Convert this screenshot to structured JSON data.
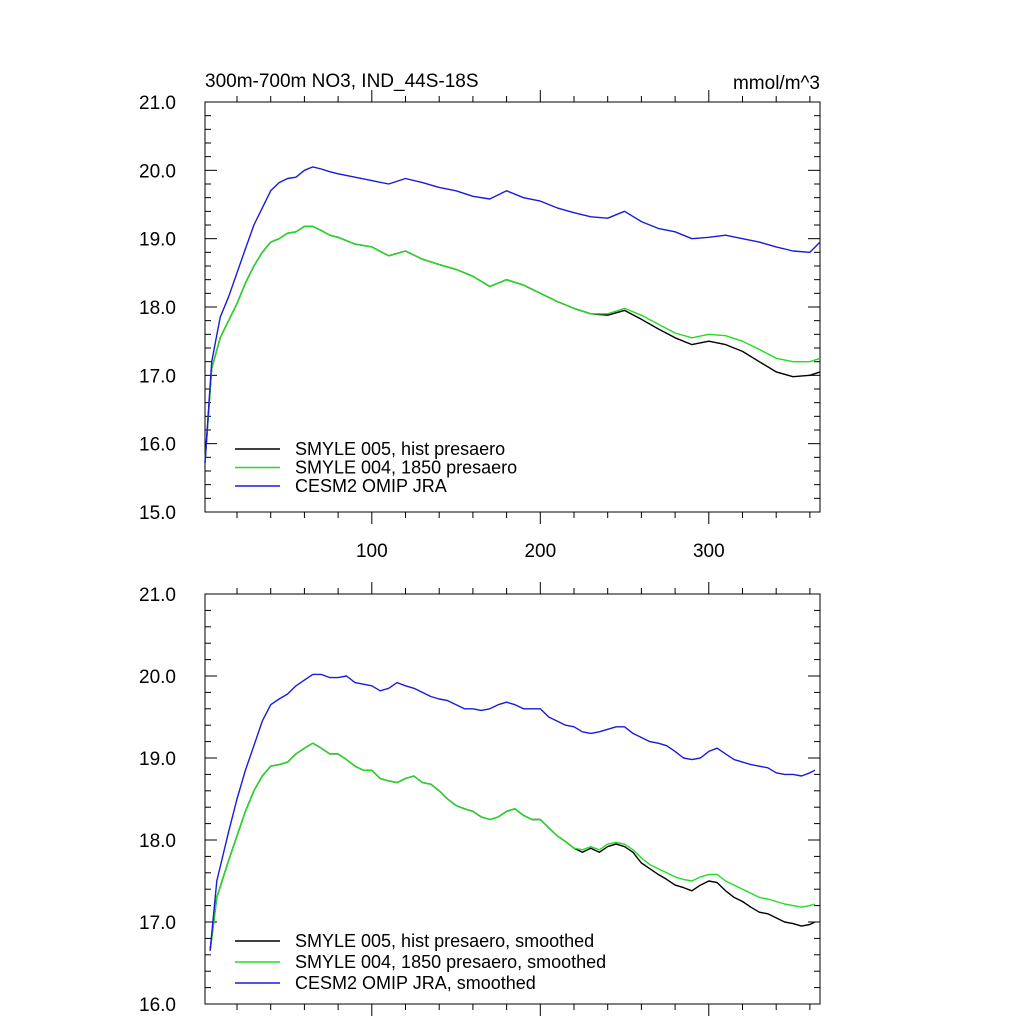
{
  "chart_data": [
    {
      "type": "line",
      "title": "300m-700m NO3, IND_44S-18S",
      "units_label": "mmol/m^3",
      "xlim": [
        1,
        366
      ],
      "ylim": [
        15.0,
        21.0
      ],
      "x_ticks": [
        100,
        200,
        300
      ],
      "x_tick_labels": [
        "100",
        "200",
        "300"
      ],
      "y_ticks": [
        15.0,
        16.0,
        17.0,
        18.0,
        19.0,
        20.0,
        21.0
      ],
      "y_tick_labels": [
        "15.0",
        "16.0",
        "17.0",
        "18.0",
        "19.0",
        "20.0",
        "21.0"
      ],
      "legend_position": "bottom-left",
      "series": [
        {
          "name": "SMYLE 005, hist presaero",
          "color": "#000000",
          "x": [
            1,
            5,
            10,
            15,
            20,
            25,
            30,
            35,
            40,
            45,
            50,
            55,
            60,
            65,
            70,
            75,
            80,
            90,
            100,
            110,
            120,
            130,
            140,
            150,
            160,
            170,
            180,
            190,
            200,
            210,
            220,
            230,
            240,
            250,
            260,
            270,
            280,
            290,
            300,
            310,
            320,
            330,
            340,
            350,
            360,
            366
          ],
          "values": [
            15.72,
            17.1,
            17.55,
            17.8,
            18.05,
            18.35,
            18.6,
            18.8,
            18.95,
            19.0,
            19.08,
            19.1,
            19.18,
            19.18,
            19.12,
            19.05,
            19.02,
            18.92,
            18.88,
            18.75,
            18.82,
            18.7,
            18.62,
            18.55,
            18.45,
            18.3,
            18.4,
            18.32,
            18.2,
            18.08,
            17.98,
            17.9,
            17.88,
            17.95,
            17.82,
            17.68,
            17.55,
            17.45,
            17.5,
            17.45,
            17.35,
            17.2,
            17.05,
            16.98,
            17.0,
            17.05
          ]
        },
        {
          "name": "SMYLE 004, 1850 presaero",
          "color": "#22dd22",
          "x": [
            1,
            5,
            10,
            15,
            20,
            25,
            30,
            35,
            40,
            45,
            50,
            55,
            60,
            65,
            70,
            75,
            80,
            90,
            100,
            110,
            120,
            130,
            140,
            150,
            160,
            170,
            180,
            190,
            200,
            210,
            220,
            230,
            240,
            250,
            260,
            270,
            280,
            290,
            300,
            310,
            320,
            330,
            340,
            350,
            360,
            366
          ],
          "values": [
            15.72,
            17.1,
            17.55,
            17.8,
            18.05,
            18.35,
            18.6,
            18.8,
            18.95,
            19.0,
            19.08,
            19.1,
            19.18,
            19.18,
            19.12,
            19.05,
            19.02,
            18.92,
            18.88,
            18.75,
            18.82,
            18.7,
            18.62,
            18.55,
            18.45,
            18.3,
            18.4,
            18.32,
            18.2,
            18.08,
            17.98,
            17.9,
            17.9,
            17.98,
            17.88,
            17.75,
            17.62,
            17.55,
            17.6,
            17.58,
            17.5,
            17.38,
            17.25,
            17.2,
            17.2,
            17.25
          ]
        },
        {
          "name": "CESM2 OMIP JRA",
          "color": "#1a1adc",
          "x": [
            1,
            5,
            10,
            15,
            20,
            25,
            30,
            35,
            40,
            45,
            50,
            55,
            60,
            65,
            70,
            75,
            80,
            90,
            100,
            110,
            120,
            130,
            140,
            150,
            160,
            170,
            180,
            190,
            200,
            210,
            220,
            230,
            240,
            250,
            260,
            270,
            280,
            290,
            300,
            310,
            320,
            330,
            340,
            350,
            360,
            366
          ],
          "values": [
            15.72,
            17.2,
            17.85,
            18.15,
            18.5,
            18.85,
            19.2,
            19.45,
            19.7,
            19.82,
            19.88,
            19.9,
            20.0,
            20.05,
            20.02,
            19.98,
            19.95,
            19.9,
            19.85,
            19.8,
            19.88,
            19.82,
            19.75,
            19.7,
            19.62,
            19.58,
            19.7,
            19.6,
            19.55,
            19.45,
            19.38,
            19.32,
            19.3,
            19.4,
            19.25,
            19.15,
            19.1,
            19.0,
            19.02,
            19.05,
            19.0,
            18.95,
            18.88,
            18.82,
            18.8,
            18.95
          ]
        }
      ]
    },
    {
      "type": "line",
      "xlim": [
        1,
        366
      ],
      "ylim": [
        16.0,
        21.0
      ],
      "x_ticks": [
        100,
        200,
        300
      ],
      "y_ticks": [
        16.0,
        17.0,
        18.0,
        19.0,
        20.0,
        21.0
      ],
      "y_tick_labels": [
        "16.0",
        "17.0",
        "18.0",
        "19.0",
        "20.0",
        "21.0"
      ],
      "legend_position": "bottom-left",
      "series": [
        {
          "name": "SMYLE 005, hist presaero, smoothed",
          "color": "#000000",
          "x": [
            4,
            8,
            15,
            20,
            25,
            30,
            35,
            40,
            45,
            50,
            55,
            60,
            65,
            70,
            75,
            80,
            85,
            90,
            95,
            100,
            105,
            110,
            115,
            120,
            125,
            130,
            135,
            140,
            145,
            150,
            155,
            160,
            165,
            170,
            175,
            180,
            185,
            190,
            195,
            200,
            205,
            210,
            215,
            220,
            225,
            230,
            235,
            240,
            245,
            250,
            255,
            260,
            265,
            270,
            275,
            280,
            285,
            290,
            295,
            300,
            305,
            310,
            315,
            320,
            325,
            330,
            335,
            340,
            345,
            350,
            355,
            360,
            363
          ],
          "values": [
            16.65,
            17.3,
            17.75,
            18.05,
            18.35,
            18.6,
            18.78,
            18.9,
            18.92,
            18.95,
            19.05,
            19.12,
            19.18,
            19.12,
            19.05,
            19.05,
            18.98,
            18.9,
            18.85,
            18.85,
            18.75,
            18.72,
            18.7,
            18.75,
            18.78,
            18.7,
            18.68,
            18.6,
            18.5,
            18.42,
            18.38,
            18.35,
            18.28,
            18.25,
            18.28,
            18.35,
            18.38,
            18.3,
            18.25,
            18.25,
            18.15,
            18.05,
            17.98,
            17.9,
            17.85,
            17.9,
            17.85,
            17.92,
            17.95,
            17.92,
            17.85,
            17.72,
            17.65,
            17.58,
            17.52,
            17.45,
            17.42,
            17.38,
            17.45,
            17.5,
            17.48,
            17.38,
            17.3,
            17.25,
            17.18,
            17.12,
            17.1,
            17.05,
            17.0,
            16.98,
            16.95,
            16.97,
            17.0
          ]
        },
        {
          "name": "SMYLE 004, 1850 presaero, smoothed",
          "color": "#22dd22",
          "x": [
            4,
            8,
            15,
            20,
            25,
            30,
            35,
            40,
            45,
            50,
            55,
            60,
            65,
            70,
            75,
            80,
            85,
            90,
            95,
            100,
            105,
            110,
            115,
            120,
            125,
            130,
            135,
            140,
            145,
            150,
            155,
            160,
            165,
            170,
            175,
            180,
            185,
            190,
            195,
            200,
            205,
            210,
            215,
            220,
            225,
            230,
            235,
            240,
            245,
            250,
            255,
            260,
            265,
            270,
            275,
            280,
            285,
            290,
            295,
            300,
            305,
            310,
            315,
            320,
            325,
            330,
            335,
            340,
            345,
            350,
            355,
            360,
            363
          ],
          "values": [
            16.65,
            17.3,
            17.75,
            18.05,
            18.35,
            18.6,
            18.78,
            18.9,
            18.92,
            18.95,
            19.05,
            19.12,
            19.18,
            19.12,
            19.05,
            19.05,
            18.98,
            18.9,
            18.85,
            18.85,
            18.75,
            18.72,
            18.7,
            18.75,
            18.78,
            18.7,
            18.68,
            18.6,
            18.5,
            18.42,
            18.38,
            18.35,
            18.28,
            18.25,
            18.28,
            18.35,
            18.38,
            18.3,
            18.25,
            18.25,
            18.15,
            18.05,
            17.98,
            17.9,
            17.88,
            17.92,
            17.88,
            17.95,
            17.97,
            17.95,
            17.88,
            17.78,
            17.7,
            17.65,
            17.6,
            17.55,
            17.52,
            17.5,
            17.55,
            17.58,
            17.58,
            17.5,
            17.45,
            17.4,
            17.35,
            17.3,
            17.28,
            17.25,
            17.22,
            17.2,
            17.18,
            17.2,
            17.22
          ]
        },
        {
          "name": "CESM2 OMIP JRA, smoothed",
          "color": "#1a1adc",
          "x": [
            4,
            8,
            15,
            20,
            25,
            30,
            35,
            40,
            45,
            50,
            55,
            60,
            65,
            70,
            75,
            80,
            85,
            90,
            95,
            100,
            105,
            110,
            115,
            120,
            125,
            130,
            135,
            140,
            145,
            150,
            155,
            160,
            165,
            170,
            175,
            180,
            185,
            190,
            195,
            200,
            205,
            210,
            215,
            220,
            225,
            230,
            235,
            240,
            245,
            250,
            255,
            260,
            265,
            270,
            275,
            280,
            285,
            290,
            295,
            300,
            305,
            310,
            315,
            320,
            325,
            330,
            335,
            340,
            345,
            350,
            355,
            360,
            363
          ],
          "values": [
            16.65,
            17.5,
            18.1,
            18.5,
            18.85,
            19.15,
            19.45,
            19.65,
            19.72,
            19.78,
            19.88,
            19.95,
            20.02,
            20.02,
            19.98,
            19.98,
            20.0,
            19.92,
            19.9,
            19.88,
            19.82,
            19.85,
            19.92,
            19.88,
            19.85,
            19.8,
            19.75,
            19.72,
            19.7,
            19.65,
            19.6,
            19.6,
            19.58,
            19.6,
            19.65,
            19.68,
            19.65,
            19.6,
            19.6,
            19.6,
            19.5,
            19.45,
            19.4,
            19.38,
            19.32,
            19.3,
            19.32,
            19.35,
            19.38,
            19.38,
            19.3,
            19.25,
            19.2,
            19.18,
            19.15,
            19.08,
            19.0,
            18.98,
            19.0,
            19.08,
            19.12,
            19.05,
            18.98,
            18.95,
            18.92,
            18.9,
            18.88,
            18.82,
            18.8,
            18.8,
            18.78,
            18.82,
            18.85
          ]
        }
      ]
    }
  ]
}
